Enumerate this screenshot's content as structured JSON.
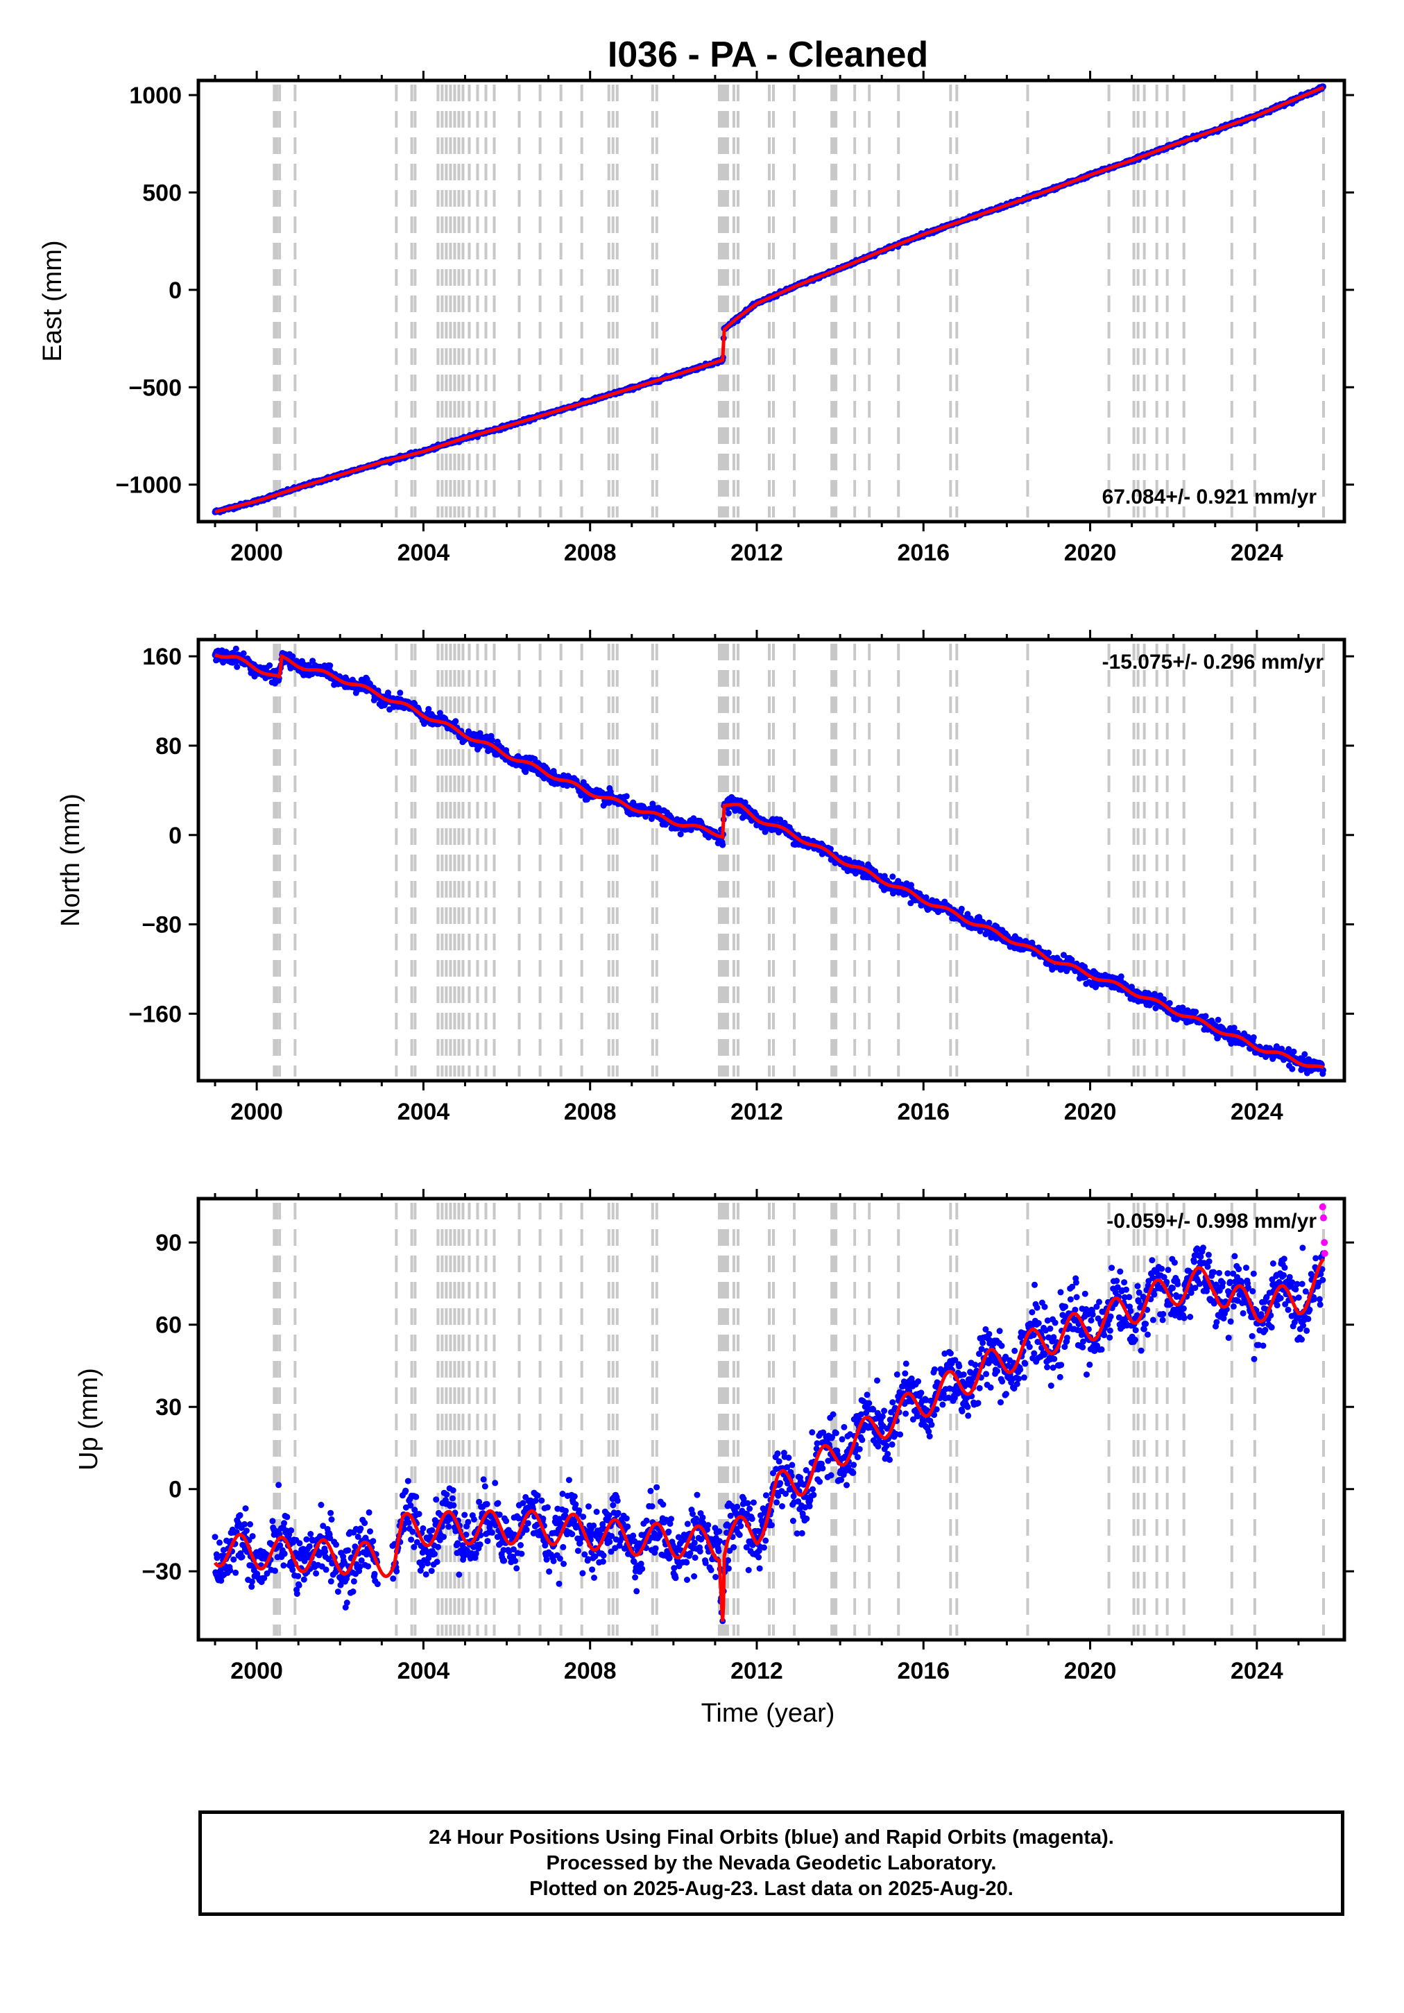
{
  "title": "I036  - PA - Cleaned",
  "xlabel": "Time (year)",
  "x_tick_labels": [
    "2000",
    "2004",
    "2008",
    "2012",
    "2016",
    "2020",
    "2024"
  ],
  "colors": {
    "final_orbits": "#0000ff",
    "rapid_orbits": "#ff00ff",
    "model": "#ff0000",
    "event_lines": "#c8c8c8"
  },
  "equipment_change_years": [
    2000.42,
    2000.48,
    2000.55,
    2000.92,
    2003.35,
    2003.72,
    2003.8,
    2004.35,
    2004.45,
    2004.55,
    2004.65,
    2004.75,
    2004.85,
    2004.95,
    2005.1,
    2005.3,
    2005.5,
    2005.7,
    2006.3,
    2006.8,
    2007.3,
    2007.8,
    2008.45,
    2008.55,
    2008.65,
    2009.5,
    2009.6,
    2011.1,
    2011.15,
    2011.2,
    2011.25,
    2011.3,
    2011.45,
    2011.55,
    2012.3,
    2012.4,
    2012.9,
    2013.8,
    2013.85,
    2013.9,
    2014.35,
    2014.7,
    2015.4,
    2016.65,
    2016.8,
    2018.5,
    2020.45,
    2021.05,
    2021.15,
    2021.3,
    2021.6,
    2021.85,
    2022.25,
    2023.4,
    2023.95,
    2025.6
  ],
  "chart_data": [
    {
      "type": "scatter",
      "ylabel": "East (mm)",
      "velocity_label": "67.084+/- 0.921 mm/yr",
      "xlim": [
        1998.6,
        2026.1
      ],
      "ylim": [
        -1190,
        1075
      ],
      "y_ticks": [
        1000,
        500,
        0,
        -500,
        -1000
      ],
      "y_tick_labels": [
        "1000",
        "500",
        "0",
        "−500",
        "−1000"
      ],
      "x": [
        1999.0,
        2000.0,
        2001.0,
        2002.0,
        2003.0,
        2004.0,
        2005.0,
        2006.0,
        2007.0,
        2008.0,
        2009.0,
        2010.0,
        2011.19,
        2011.21,
        2011.5,
        2012.0,
        2013.0,
        2014.0,
        2015.0,
        2016.0,
        2017.0,
        2018.0,
        2019.0,
        2020.0,
        2021.0,
        2022.0,
        2023.0,
        2024.0,
        2025.6
      ],
      "y": [
        -1140,
        -1085,
        -1015,
        -950,
        -885,
        -830,
        -760,
        -700,
        -635,
        -570,
        -505,
        -440,
        -360,
        -205,
        -150,
        -70,
        25,
        110,
        200,
        285,
        360,
        435,
        510,
        590,
        665,
        745,
        820,
        895,
        1040
      ],
      "noise": 4,
      "seasonal": 0
    },
    {
      "type": "scatter",
      "ylabel": "North (mm)",
      "velocity_label": "-15.075+/- 0.296 mm/yr",
      "xlim": [
        1998.6,
        2026.1
      ],
      "ylim": [
        -220,
        175
      ],
      "y_ticks": [
        160,
        80,
        0,
        -80,
        -160
      ],
      "y_tick_labels": [
        "160",
        "80",
        "0",
        "−80",
        "−160"
      ],
      "x": [
        1999.0,
        1999.5,
        2000.55,
        2000.6,
        2001.0,
        2002.0,
        2003.0,
        2004.0,
        2005.0,
        2006.0,
        2007.0,
        2008.0,
        2009.0,
        2010.0,
        2011.19,
        2011.21,
        2011.6,
        2012.0,
        2013.0,
        2014.0,
        2015.0,
        2016.0,
        2017.0,
        2018.0,
        2019.0,
        2020.0,
        2021.0,
        2022.0,
        2023.0,
        2024.0,
        2025.6
      ],
      "y": [
        163,
        158,
        140,
        158,
        152,
        140,
        125,
        108,
        90,
        72,
        55,
        38,
        25,
        12,
        0,
        28,
        25,
        15,
        -2,
        -22,
        -40,
        -58,
        -75,
        -92,
        -110,
        -125,
        -140,
        -157,
        -173,
        -190,
        -210
      ],
      "noise": 3,
      "seasonal": 2
    },
    {
      "type": "scatter",
      "ylabel": "Up (mm)",
      "velocity_label": "-0.059+/- 0.998 mm/yr",
      "xlim": [
        1998.6,
        2026.1
      ],
      "ylim": [
        -55,
        106
      ],
      "y_ticks": [
        90,
        60,
        30,
        0,
        -30
      ],
      "y_tick_labels": [
        "90",
        "60",
        "30",
        "0",
        "−30"
      ],
      "x": [
        1999.0,
        2001.0,
        2003.3,
        2003.5,
        2005.0,
        2007.0,
        2009.0,
        2011.1,
        2011.19,
        2011.22,
        2011.3,
        2012.0,
        2012.5,
        2013.0,
        2014.0,
        2015.0,
        2016.0,
        2017.0,
        2018.0,
        2019.0,
        2020.0,
        2021.0,
        2022.0,
        2023.0,
        2023.3,
        2024.0,
        2025.0,
        2025.6
      ],
      "y": [
        -22,
        -24,
        -26,
        -15,
        -14,
        -14,
        -18,
        -20,
        -46,
        -20,
        -17,
        -15,
        0,
        3,
        14,
        24,
        32,
        40,
        48,
        55,
        60,
        66,
        73,
        76,
        69,
        67,
        69,
        78
      ],
      "noise": 5.5,
      "seasonal": 6,
      "rapid_points": {
        "x": [
          2025.58,
          2025.6,
          2025.62,
          2025.63
        ],
        "y": [
          103,
          99,
          90,
          86
        ]
      }
    }
  ],
  "footer": {
    "line1": "24 Hour Positions Using Final Orbits (blue) and Rapid Orbits (magenta).",
    "line2": "Processed by the Nevada Geodetic Laboratory.",
    "line3": "Plotted on 2025-Aug-23. Last data on 2025-Aug-20."
  }
}
